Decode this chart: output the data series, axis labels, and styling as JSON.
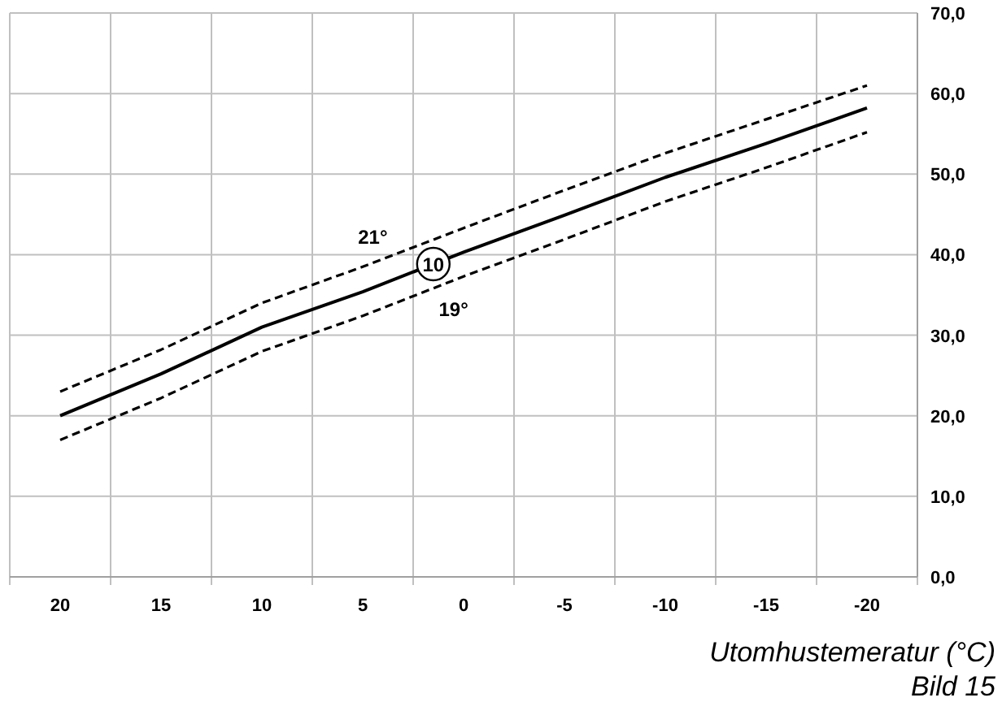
{
  "chart_data": {
    "type": "line",
    "xlabel": "Utomhustemeratur (°C)",
    "annotations": [
      "Bild 15"
    ],
    "categories": [
      "20",
      "15",
      "10",
      "5",
      "0",
      "-5",
      "-10",
      "-15",
      "-20"
    ],
    "ylim": [
      0,
      70
    ],
    "yticks": [
      {
        "value": 0,
        "label": "0,0"
      },
      {
        "value": 10,
        "label": "10,0"
      },
      {
        "value": 20,
        "label": "20,0"
      },
      {
        "value": 30,
        "label": "30,0"
      },
      {
        "value": 40,
        "label": "40,0"
      },
      {
        "value": 50,
        "label": "50,0"
      },
      {
        "value": 60,
        "label": "60,0"
      },
      {
        "value": 70,
        "label": "70,0"
      }
    ],
    "grid": true,
    "marker": "none",
    "series": [
      {
        "name": "21°",
        "color": "#000000",
        "line_style": "dashed",
        "values": [
          23,
          28.2,
          34,
          38.5,
          43.3,
          48,
          52.6,
          56.8,
          61
        ]
      },
      {
        "name": "10",
        "color": "#000000",
        "line_style": "solid",
        "values": [
          20,
          25.2,
          31,
          35.4,
          40.3,
          44.9,
          49.6,
          53.8,
          58.2
        ]
      },
      {
        "name": "19°",
        "color": "#000000",
        "line_style": "dashed",
        "values": [
          17,
          22.2,
          28,
          32.4,
          37.3,
          41.9,
          46.6,
          50.8,
          55.2
        ]
      }
    ]
  }
}
